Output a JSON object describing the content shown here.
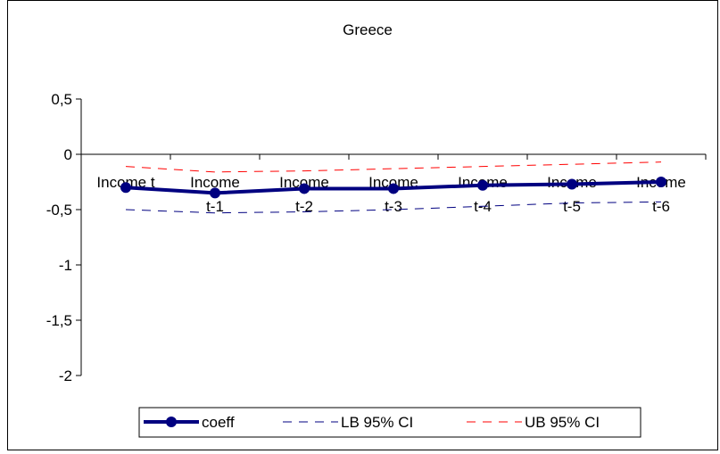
{
  "chart_data": {
    "type": "line",
    "title": "Greece",
    "xlabel": "",
    "ylabel": "",
    "categories": [
      "Income t",
      "Income t-1",
      "Income t-2",
      "Income t-3",
      "Income t-4",
      "Income t-5",
      "Income t-6"
    ],
    "category_lines": [
      [
        "Income t"
      ],
      [
        "Income",
        "t-1"
      ],
      [
        "Income",
        "t-2"
      ],
      [
        "Income",
        "t-3"
      ],
      [
        "Income",
        "t-4"
      ],
      [
        "Income",
        "t-5"
      ],
      [
        "Income",
        "t-6"
      ]
    ],
    "ylim": [
      -2,
      0.5
    ],
    "ytick_labels": [
      "0,5",
      "0",
      "-0,5",
      "-1",
      "-1,5",
      "-2"
    ],
    "ytick_values": [
      0.5,
      0,
      -0.5,
      -1,
      -1.5,
      -2
    ],
    "grid": false,
    "legend_position": "bottom",
    "series": [
      {
        "name": "coeff",
        "values": [
          -0.3,
          -0.35,
          -0.31,
          -0.31,
          -0.28,
          -0.27,
          -0.25
        ],
        "color": "#000080",
        "style": "solid-marker"
      },
      {
        "name": "LB 95% CI",
        "values": [
          -0.5,
          -0.53,
          -0.52,
          -0.5,
          -0.47,
          -0.44,
          -0.43
        ],
        "color": "#000080",
        "style": "dashed"
      },
      {
        "name": "UB 95% CI",
        "values": [
          -0.11,
          -0.16,
          -0.15,
          -0.13,
          -0.11,
          -0.09,
          -0.07
        ],
        "color": "#ff0000",
        "style": "dashed"
      }
    ]
  }
}
